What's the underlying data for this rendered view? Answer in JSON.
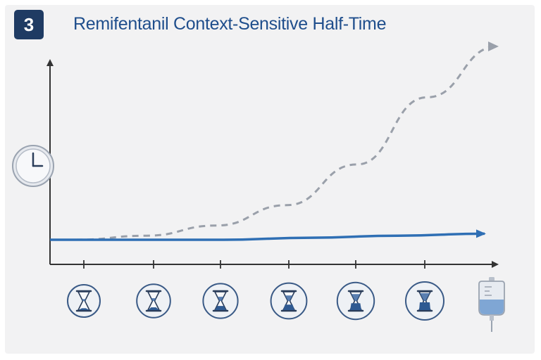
{
  "header": {
    "step_number": "3",
    "title": "Remifentanil Context-Sensitive Half-Time"
  },
  "colors": {
    "badge": "#1f3b63",
    "title": "#1f4e8c",
    "remifentanil_line": "#2f6fb4",
    "comparison_line": "#9aa0aa",
    "axis": "#333333"
  },
  "icons": {
    "y_axis": "clock-icon",
    "x_axis": "hourglass-icon",
    "end": "iv-bag-icon"
  },
  "chart_data": {
    "type": "line",
    "x_ticks": 6,
    "series": [
      {
        "style": "solid",
        "values": [
          0.05,
          0.05,
          0.05,
          0.06,
          0.07,
          0.08
        ]
      },
      {
        "style": "dashed",
        "values": [
          0.05,
          0.07,
          0.12,
          0.22,
          0.42,
          0.75,
          1.0
        ]
      }
    ],
    "hourglass_fill_levels": [
      0.2,
      0.3,
      0.45,
      0.6,
      0.75,
      0.85
    ]
  }
}
